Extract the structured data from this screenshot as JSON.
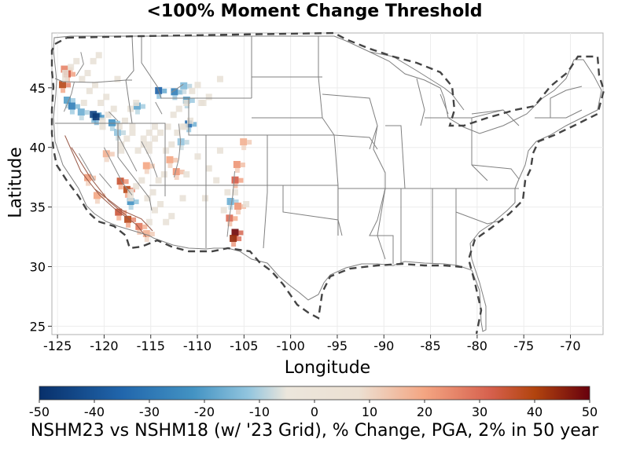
{
  "title": "<100% Moment Change Threshold",
  "x_axis": {
    "label": "Longitude",
    "ticks": [
      -125,
      -120,
      -115,
      -110,
      -105,
      -100,
      -95,
      -90,
      -85,
      -80,
      -75,
      -70
    ],
    "range": [
      -125.6,
      -66.5
    ]
  },
  "y_axis": {
    "label": "Latitude",
    "ticks": [
      25,
      30,
      35,
      40,
      45
    ],
    "range": [
      24.3,
      49.6
    ]
  },
  "colorbar": {
    "title": "NSHM23 vs NSHM18 (w/ '23 Grid), % Change, PGA, 2% in 50 year",
    "ticks": [
      -50,
      -40,
      -30,
      -20,
      -10,
      0,
      10,
      20,
      30,
      40,
      50
    ],
    "range": [
      -50,
      50
    ],
    "colors": [
      "#08306b",
      "#2166ac",
      "#4393c3",
      "#92c5de",
      "#ece6dc",
      "#f4a582",
      "#d6604d",
      "#b2440e",
      "#67000d"
    ]
  },
  "grid": true,
  "colors": {
    "state_lines": "#808080",
    "boundary_dash": "#444444",
    "fault_lines": "#8a8a8a"
  },
  "cells": [
    {
      "lon": -124.3,
      "lat": 46.6,
      "v": 18
    },
    {
      "lon": -124.0,
      "lat": 46.2,
      "v": 26
    },
    {
      "lon": -124.5,
      "lat": 45.3,
      "v": 35
    },
    {
      "lon": -124.0,
      "lat": 44.0,
      "v": -22
    },
    {
      "lon": -123.5,
      "lat": 43.5,
      "v": -30
    },
    {
      "lon": -122.5,
      "lat": 43.0,
      "v": -18
    },
    {
      "lon": -121.2,
      "lat": 42.8,
      "v": -45
    },
    {
      "lon": -120.9,
      "lat": 42.6,
      "v": -48
    },
    {
      "lon": -119.2,
      "lat": 42.1,
      "v": -25
    },
    {
      "lon": -118.6,
      "lat": 41.3,
      "v": -12
    },
    {
      "lon": -116.5,
      "lat": 43.5,
      "v": -20
    },
    {
      "lon": -114.2,
      "lat": 44.8,
      "v": -38
    },
    {
      "lon": -112.5,
      "lat": 44.7,
      "v": -30
    },
    {
      "lon": -111.5,
      "lat": 45.2,
      "v": -15
    },
    {
      "lon": -111.2,
      "lat": 44.0,
      "v": -22
    },
    {
      "lon": -111.0,
      "lat": 42.0,
      "v": -35
    },
    {
      "lon": -111.8,
      "lat": 40.5,
      "v": -12
    },
    {
      "lon": -113.0,
      "lat": 39.0,
      "v": 12
    },
    {
      "lon": -112.3,
      "lat": 38.0,
      "v": 15
    },
    {
      "lon": -115.5,
      "lat": 38.5,
      "v": 12
    },
    {
      "lon": -119.8,
      "lat": 39.5,
      "v": 10
    },
    {
      "lon": -118.3,
      "lat": 37.2,
      "v": 30
    },
    {
      "lon": -117.6,
      "lat": 36.5,
      "v": 35
    },
    {
      "lon": -117.2,
      "lat": 35.5,
      "v": -25
    },
    {
      "lon": -118.5,
      "lat": 34.6,
      "v": 28
    },
    {
      "lon": -117.5,
      "lat": 34.0,
      "v": 35
    },
    {
      "lon": -116.3,
      "lat": 33.4,
      "v": 20
    },
    {
      "lon": -115.5,
      "lat": 32.8,
      "v": 10
    },
    {
      "lon": -121.8,
      "lat": 37.5,
      "v": 14
    },
    {
      "lon": -120.8,
      "lat": 36.0,
      "v": 12
    },
    {
      "lon": -105.8,
      "lat": 38.6,
      "v": 15
    },
    {
      "lon": -106.0,
      "lat": 37.3,
      "v": 25
    },
    {
      "lon": -106.5,
      "lat": 35.5,
      "v": -18
    },
    {
      "lon": -105.7,
      "lat": 35.1,
      "v": 15
    },
    {
      "lon": -106.6,
      "lat": 34.1,
      "v": 22
    },
    {
      "lon": -106.0,
      "lat": 32.9,
      "v": 48
    },
    {
      "lon": -106.2,
      "lat": 32.4,
      "v": 42
    },
    {
      "lon": -105.1,
      "lat": 40.5,
      "v": 10
    }
  ]
}
